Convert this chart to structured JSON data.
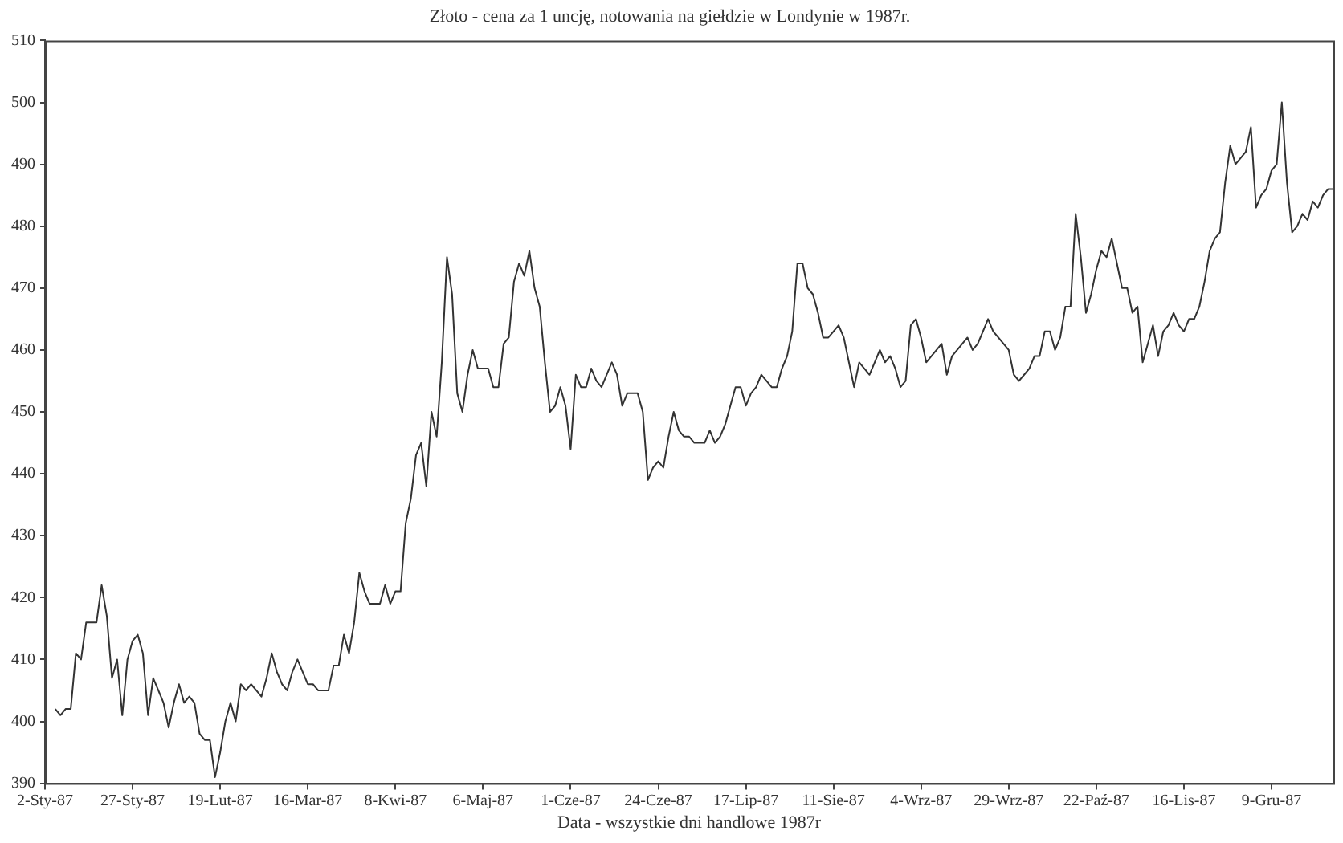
{
  "chart_data": {
    "type": "line",
    "title": "Złoto - cena za 1 uncję, notowania na giełdzie w Londynie w 1987r.",
    "xlabel": "Data - wszystkie dni handlowe 1987r",
    "categories": [
      "2-Sty-87",
      null,
      null,
      null,
      null,
      null,
      null,
      null,
      null,
      null,
      null,
      null,
      null,
      null,
      null,
      null,
      null,
      "27-Sty-87",
      null,
      null,
      null,
      null,
      null,
      null,
      null,
      null,
      null,
      null,
      null,
      null,
      null,
      null,
      null,
      null,
      "19-Lut-87",
      null,
      null,
      null,
      null,
      null,
      null,
      null,
      null,
      null,
      null,
      null,
      null,
      null,
      null,
      null,
      null,
      "16-Mar-87",
      null,
      null,
      null,
      null,
      null,
      null,
      null,
      null,
      null,
      null,
      null,
      null,
      null,
      null,
      null,
      null,
      "8-Kwi-87",
      null,
      null,
      null,
      null,
      null,
      null,
      null,
      null,
      null,
      null,
      null,
      null,
      null,
      null,
      null,
      null,
      "6-Maj-87",
      null,
      null,
      null,
      null,
      null,
      null,
      null,
      null,
      null,
      null,
      null,
      null,
      null,
      null,
      null,
      null,
      "1-Cze-87",
      null,
      null,
      null,
      null,
      null,
      null,
      null,
      null,
      null,
      null,
      null,
      null,
      null,
      null,
      null,
      null,
      "24-Cze-87",
      null,
      null,
      null,
      null,
      null,
      null,
      null,
      null,
      null,
      null,
      null,
      null,
      null,
      null,
      null,
      null,
      "17-Lip-87",
      null,
      null,
      null,
      null,
      null,
      null,
      null,
      null,
      null,
      null,
      null,
      null,
      null,
      null,
      null,
      null,
      "11-Sie-87",
      null,
      null,
      null,
      null,
      null,
      null,
      null,
      null,
      null,
      null,
      null,
      null,
      null,
      null,
      null,
      null,
      "4-Wrz-87",
      null,
      null,
      null,
      null,
      null,
      null,
      null,
      null,
      null,
      null,
      null,
      null,
      null,
      null,
      null,
      null,
      "29-Wrz-87",
      null,
      null,
      null,
      null,
      null,
      null,
      null,
      null,
      null,
      null,
      null,
      null,
      null,
      null,
      null,
      null,
      "22-Paź-87",
      null,
      null,
      null,
      null,
      null,
      null,
      null,
      null,
      null,
      null,
      null,
      null,
      null,
      null,
      null,
      null,
      "16-Lis-87",
      null,
      null,
      null,
      null,
      null,
      null,
      null,
      null,
      null,
      null,
      null,
      null,
      null,
      null,
      null,
      null,
      "9-Gru-87",
      null,
      null,
      null,
      null,
      null,
      null,
      null,
      null,
      null,
      null,
      null,
      null
    ],
    "series": [
      {
        "color": "#333333",
        "values": [
          null,
          null,
          402,
          401,
          402,
          402,
          411,
          410,
          416,
          416,
          416,
          422,
          417,
          407,
          410,
          401,
          410,
          413,
          414,
          411,
          401,
          407,
          405,
          403,
          399,
          403,
          406,
          403,
          404,
          403,
          398,
          397,
          397,
          391,
          395,
          400,
          403,
          400,
          406,
          405,
          406,
          405,
          404,
          407,
          411,
          408,
          406,
          405,
          408,
          410,
          408,
          406,
          406,
          405,
          405,
          405,
          409,
          409,
          414,
          411,
          416,
          424,
          421,
          419,
          419,
          419,
          422,
          419,
          421,
          421,
          432,
          436,
          443,
          445,
          438,
          450,
          446,
          458,
          475,
          469,
          453,
          450,
          456,
          460,
          457,
          457,
          457,
          454,
          454,
          461,
          462,
          471,
          474,
          472,
          476,
          470,
          467,
          458,
          450,
          451,
          454,
          451,
          444,
          456,
          454,
          454,
          457,
          455,
          454,
          456,
          458,
          456,
          451,
          453,
          453,
          453,
          450,
          439,
          441,
          442,
          441,
          446,
          450,
          447,
          446,
          446,
          445,
          445,
          445,
          447,
          445,
          446,
          448,
          451,
          454,
          454,
          451,
          453,
          454,
          456,
          455,
          454,
          454,
          457,
          459,
          463,
          474,
          474,
          470,
          469,
          466,
          462,
          462,
          463,
          464,
          462,
          458,
          454,
          458,
          457,
          456,
          458,
          460,
          458,
          459,
          457,
          454,
          455,
          464,
          465,
          462,
          458,
          459,
          460,
          461,
          456,
          459,
          460,
          461,
          462,
          460,
          461,
          463,
          465,
          463,
          462,
          461,
          460,
          456,
          455,
          456,
          457,
          459,
          459,
          463,
          463,
          460,
          462,
          467,
          467,
          482,
          475,
          466,
          469,
          473,
          476,
          475,
          478,
          474,
          470,
          470,
          466,
          467,
          458,
          461,
          464,
          459,
          463,
          464,
          466,
          464,
          463,
          465,
          465,
          467,
          471,
          476,
          478,
          479,
          487,
          493,
          490,
          491,
          492,
          496,
          483,
          485,
          486,
          489,
          490,
          500,
          487,
          479,
          480,
          482,
          481,
          484,
          483,
          485,
          486,
          486
        ]
      }
    ],
    "ylim": [
      390,
      510
    ],
    "yticks": [
      390,
      400,
      410,
      420,
      430,
      440,
      450,
      460,
      470,
      480,
      490,
      500,
      510
    ],
    "grid": false,
    "legend": false,
    "marker": "none",
    "line_style": "solid"
  }
}
